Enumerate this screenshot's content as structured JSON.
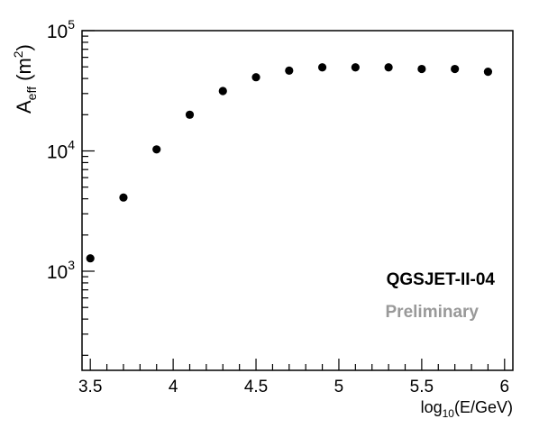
{
  "chart_data": {
    "type": "scatter",
    "x_tick_labels": [
      "3.5",
      "4",
      "4.5",
      "5",
      "5.5",
      "6"
    ],
    "x_ticks": [
      3.5,
      4.0,
      4.5,
      5.0,
      5.5,
      6.0
    ],
    "y_tick_labels": [
      {
        "base": "10",
        "exp": "3"
      },
      {
        "base": "10",
        "exp": "4"
      },
      {
        "base": "10",
        "exp": "5"
      }
    ],
    "y_major_ticks": [
      1000,
      10000,
      100000
    ],
    "xlabel": {
      "pre": "log",
      "sub": "10",
      "post": "(E/GeV)"
    },
    "ylabel": {
      "pre": "A",
      "sub": "eff",
      "mid": " (m",
      "sup": "2",
      "post": ")"
    },
    "xlim": [
      3.45,
      6.05
    ],
    "ylim": [
      150,
      100000
    ],
    "y_scale": "log",
    "grid": false,
    "x": [
      3.5,
      3.7,
      3.9,
      4.1,
      4.3,
      4.5,
      4.7,
      4.9,
      5.1,
      5.3,
      5.5,
      5.7,
      5.9
    ],
    "y": [
      1280,
      4100,
      10300,
      20000,
      31500,
      41000,
      46500,
      49500,
      49500,
      49500,
      48000,
      48000,
      45500
    ],
    "marker_color": "#000000",
    "annotations": [
      {
        "text": "QGSJET-II-04",
        "color": "#000000"
      },
      {
        "text": "Preliminary",
        "color": "#999999"
      }
    ]
  }
}
